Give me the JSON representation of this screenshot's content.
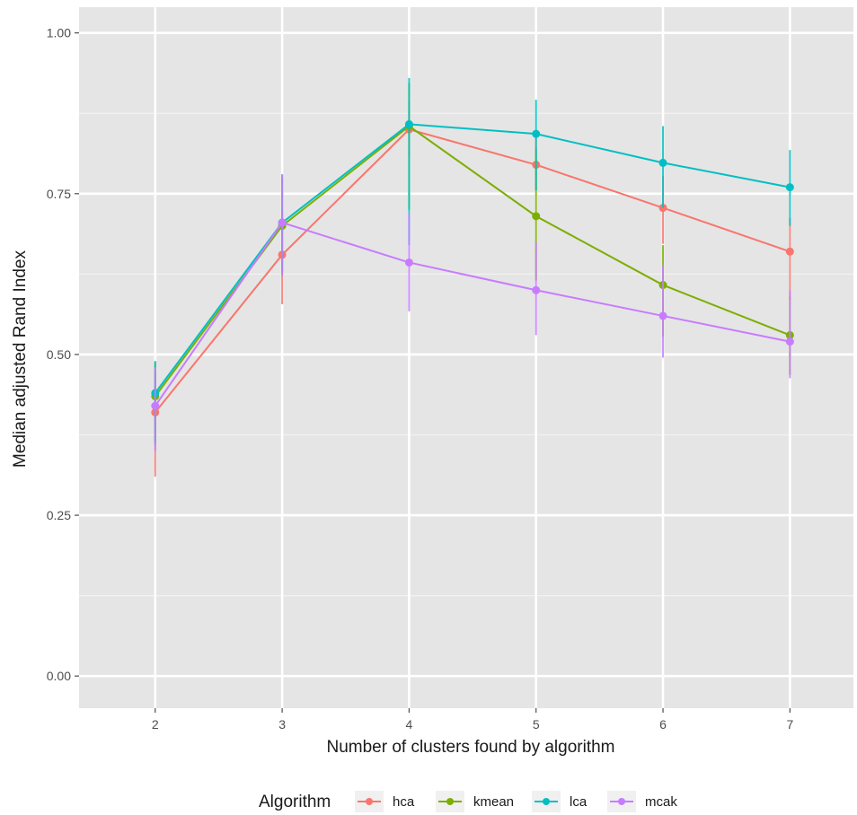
{
  "chart_data": {
    "type": "line",
    "xlabel": "Number of clusters found by algorithm",
    "ylabel": "Median adjusted Rand Index",
    "x": [
      2,
      3,
      4,
      5,
      6,
      7
    ],
    "xlim": [
      1.4,
      7.5
    ],
    "ylim": [
      -0.05,
      1.04
    ],
    "yticks": [
      0.0,
      0.25,
      0.5,
      0.75,
      1.0
    ],
    "ytick_labels": [
      "0.00",
      "0.25",
      "0.50",
      "0.75",
      "1.00"
    ],
    "grid": true,
    "panel_background": "#e5e5e5",
    "legend": {
      "title": "Algorithm",
      "position": "bottom"
    },
    "series": [
      {
        "name": "hca",
        "color": "#F8766D",
        "y": [
          0.41,
          0.655,
          0.85,
          0.795,
          0.728,
          0.66
        ],
        "err_low": [
          0.31,
          0.578,
          0.808,
          0.755,
          0.672,
          0.585
        ],
        "err_high": [
          0.47,
          0.72,
          0.893,
          0.838,
          0.778,
          0.712
        ]
      },
      {
        "name": "kmean",
        "color": "#7CAE00",
        "y": [
          0.435,
          0.7,
          0.855,
          0.715,
          0.608,
          0.53
        ],
        "err_low": [
          0.365,
          0.625,
          0.725,
          0.615,
          0.528,
          0.468
        ],
        "err_high": [
          0.488,
          0.775,
          0.922,
          0.82,
          0.67,
          0.59
        ]
      },
      {
        "name": "lca",
        "color": "#00BFC4",
        "y": [
          0.44,
          0.705,
          0.858,
          0.843,
          0.798,
          0.76
        ],
        "err_low": [
          0.36,
          0.63,
          0.67,
          0.755,
          0.728,
          0.7
        ],
        "err_high": [
          0.49,
          0.78,
          0.93,
          0.896,
          0.855,
          0.818
        ]
      },
      {
        "name": "mcak",
        "color": "#C77CFF",
        "y": [
          0.42,
          0.705,
          0.643,
          0.6,
          0.56,
          0.52
        ],
        "err_low": [
          0.35,
          0.622,
          0.567,
          0.53,
          0.495,
          0.463
        ],
        "err_high": [
          0.48,
          0.78,
          0.72,
          0.675,
          0.638,
          0.6
        ]
      }
    ]
  }
}
